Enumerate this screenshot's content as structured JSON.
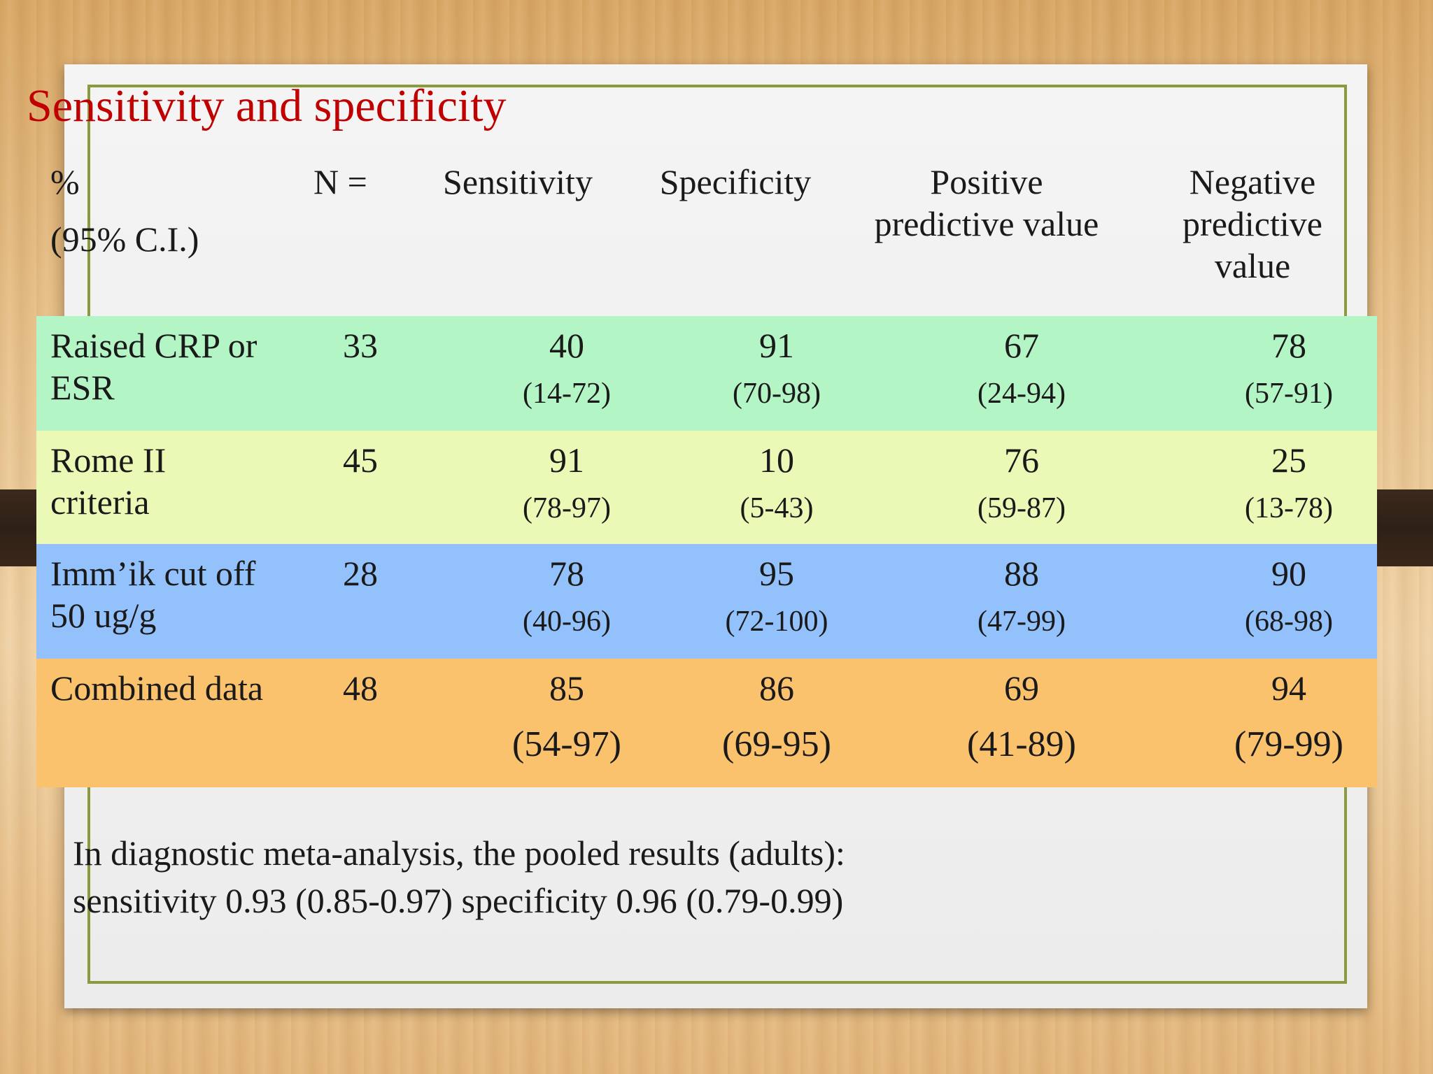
{
  "slide": {
    "title": "Sensitivity and specificity",
    "header": {
      "percent": "%",
      "ci": "(95% C.I.)",
      "n": "N =",
      "sensitivity": "Sensitivity",
      "specificity": "Specificity",
      "ppv_line1": "Positive",
      "ppv_line2": "predictive value",
      "npv_line1": "Negative",
      "npv_line2": "predictive",
      "npv_line3": "value"
    },
    "rows": [
      {
        "label_line1": "Raised CRP or",
        "label_line2": "ESR",
        "n": "33",
        "sens": "40",
        "sens_ci": "(14-72)",
        "spec": "91",
        "spec_ci": "(70-98)",
        "ppv": "67",
        "ppv_ci": "(24-94)",
        "npv": "78",
        "npv_ci": "(57-91)",
        "color": "#b3f5c5"
      },
      {
        "label_line1": "Rome II",
        "label_line2": "criteria",
        "n": "45",
        "sens": "91",
        "sens_ci": "(78-97)",
        "spec": "10",
        "spec_ci": "(5-43)",
        "ppv": "76",
        "ppv_ci": "(59-87)",
        "npv": "25",
        "npv_ci": "(13-78)",
        "color": "#eafab6"
      },
      {
        "label_line1": "Imm’ik cut off",
        "label_line2": "50 ug/g",
        "n": "28",
        "sens": "78",
        "sens_ci": "(40-96)",
        "spec": "95",
        "spec_ci": "(72-100)",
        "ppv": "88",
        "ppv_ci": "(47-99)",
        "npv": "90",
        "npv_ci": "(68-98)",
        "color": "#93c1fb"
      },
      {
        "label_line1": "Combined data",
        "label_line2": "",
        "n": "48",
        "sens": "85",
        "sens_ci": "(54-97)",
        "spec": "86",
        "spec_ci": "(69-95)",
        "ppv": "69",
        "ppv_ci": "(41-89)",
        "npv": "94",
        "npv_ci": "(79-99)",
        "color": "#fbc26e"
      }
    ],
    "footnote_line1": "In diagnostic meta-analysis, the pooled results (adults):",
    "footnote_line2": "sensitivity 0.93 (0.85-0.97) specificity 0.96 (0.79-0.99)",
    "title_color": "#c00000",
    "frame_color": "#8a9a3c"
  }
}
